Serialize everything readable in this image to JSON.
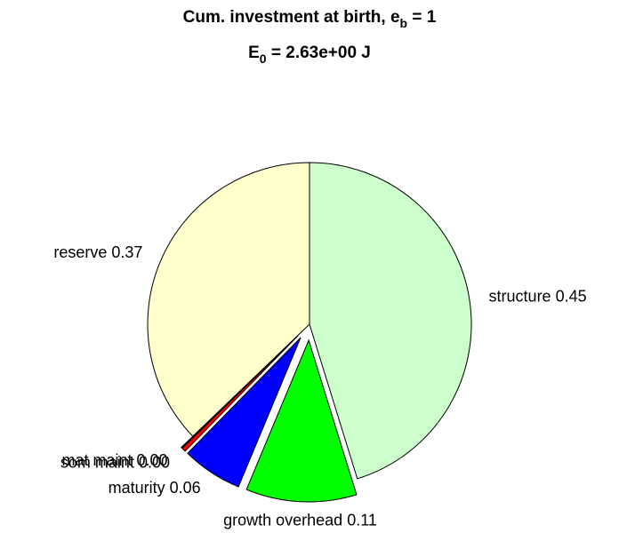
{
  "chart_data": {
    "type": "pie",
    "title": [
      "Cum. investment at birth, e",
      "b",
      " = 1"
    ],
    "subtitle": [
      "E",
      "0",
      " = 2.63e+00 J"
    ],
    "categories": [
      "structure",
      "growth overhead",
      "maturity",
      "som maint",
      "mat maint",
      "reserve"
    ],
    "values": [
      0.45,
      0.11,
      0.06,
      0.004,
      0.001,
      0.37
    ],
    "value_labels": [
      "0.45",
      "0.11",
      "0.06",
      "0.00",
      "0.00",
      "0.37"
    ],
    "colors": [
      "#ccffcc",
      "#00ff00",
      "#0000ff",
      "#ff0000",
      "#800000",
      "#ffffcc"
    ],
    "explode": [
      false,
      true,
      true,
      true,
      true,
      false
    ]
  }
}
